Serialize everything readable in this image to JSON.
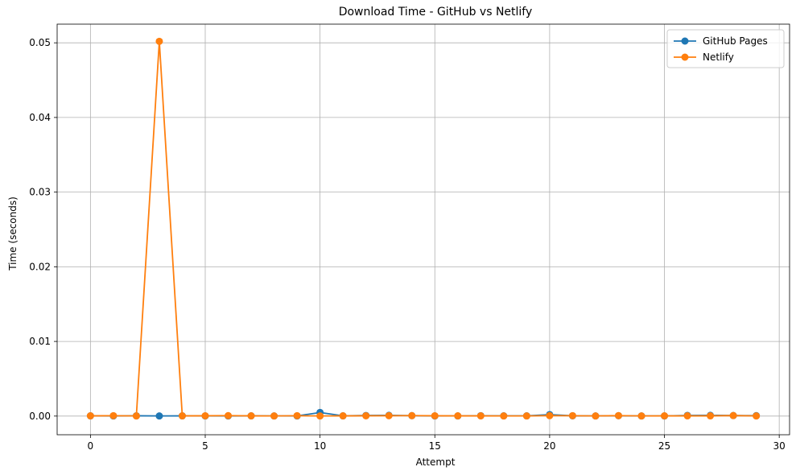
{
  "chart_data": {
    "type": "line",
    "title": "Download Time - GitHub vs Netlify",
    "xlabel": "Attempt",
    "ylabel": "Time (seconds)",
    "xlim": [
      -1.45,
      30.45
    ],
    "ylim": [
      -0.0025,
      0.0525
    ],
    "xticks": [
      0,
      5,
      10,
      15,
      20,
      25,
      30
    ],
    "yticks": [
      0.0,
      0.01,
      0.02,
      0.03,
      0.04,
      0.05
    ],
    "xtick_labels": [
      "0",
      "5",
      "10",
      "15",
      "20",
      "25",
      "30"
    ],
    "ytick_labels": [
      "0.00",
      "0.01",
      "0.02",
      "0.03",
      "0.04",
      "0.05"
    ],
    "grid": true,
    "legend_position": "upper right",
    "x": [
      0,
      1,
      2,
      3,
      4,
      5,
      6,
      7,
      8,
      9,
      10,
      11,
      12,
      13,
      14,
      15,
      16,
      17,
      18,
      19,
      20,
      21,
      22,
      23,
      24,
      25,
      26,
      27,
      28,
      29
    ],
    "series": [
      {
        "name": "GitHub Pages",
        "color": "#1f77b4",
        "marker": "circle",
        "values": [
          3e-05,
          2e-05,
          4e-05,
          2e-05,
          3e-05,
          2e-05,
          2e-05,
          3e-05,
          2e-05,
          2e-05,
          0.00048,
          3e-05,
          8e-05,
          0.0001,
          6e-05,
          2e-05,
          2e-05,
          5e-05,
          3e-05,
          3e-05,
          0.0002,
          4e-05,
          2e-05,
          5e-05,
          2e-05,
          2e-05,
          9e-05,
          0.0001,
          7e-05,
          6e-05
        ]
      },
      {
        "name": "Netlify",
        "color": "#ff7f0e",
        "marker": "circle",
        "values": [
          3e-05,
          5e-05,
          2e-05,
          0.0502,
          3e-05,
          4e-05,
          6e-05,
          3e-05,
          2e-05,
          5e-05,
          2e-05,
          3e-05,
          4e-05,
          5e-05,
          6e-05,
          4e-05,
          3e-05,
          3e-05,
          2e-05,
          2e-05,
          6e-05,
          5e-05,
          2e-05,
          6e-05,
          2e-05,
          3e-05,
          3e-05,
          3e-05,
          7e-05,
          2e-05
        ]
      }
    ]
  }
}
